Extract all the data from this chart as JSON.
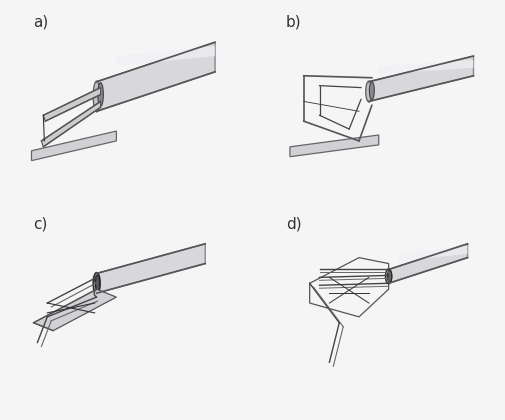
{
  "title": "",
  "background_color": "#f0f0f0",
  "panel_bg": "#e8e8ec",
  "labels": [
    "a)",
    "b)",
    "c)",
    "d)"
  ],
  "label_fontsize": 11,
  "fig_width": 5.05,
  "fig_height": 4.2,
  "dpi": 100
}
